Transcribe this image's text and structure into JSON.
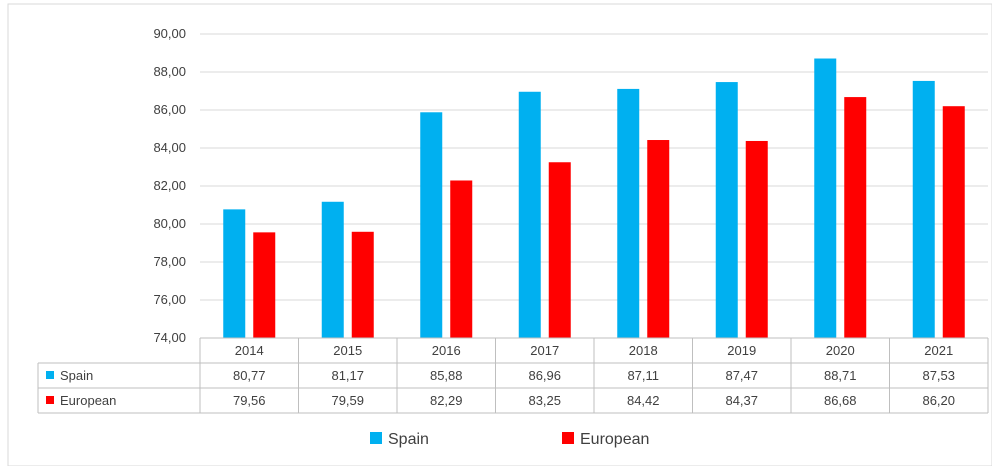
{
  "chart_data": {
    "type": "bar",
    "categories": [
      "2014",
      "2015",
      "2016",
      "2017",
      "2018",
      "2019",
      "2020",
      "2021"
    ],
    "series": [
      {
        "name": "Spain",
        "color": "#00B0F0",
        "values": [
          80.77,
          81.17,
          85.88,
          86.96,
          87.11,
          87.47,
          88.71,
          87.53
        ],
        "labels": [
          "80,77",
          "81,17",
          "85,88",
          "86,96",
          "87,11",
          "87,47",
          "88,71",
          "87,53"
        ]
      },
      {
        "name": "European",
        "color": "#FF0000",
        "values": [
          79.56,
          79.59,
          82.29,
          83.25,
          84.42,
          84.37,
          86.68,
          86.2
        ],
        "labels": [
          "79,56",
          "79,59",
          "82,29",
          "83,25",
          "84,42",
          "84,37",
          "86,68",
          "86,20"
        ]
      }
    ],
    "ylim": [
      74,
      90
    ],
    "y_ticks": [
      "74,00",
      "76,00",
      "78,00",
      "80,00",
      "82,00",
      "84,00",
      "86,00",
      "88,00",
      "90,00"
    ],
    "grid": true,
    "data_table": true,
    "legend_position": "bottom"
  }
}
